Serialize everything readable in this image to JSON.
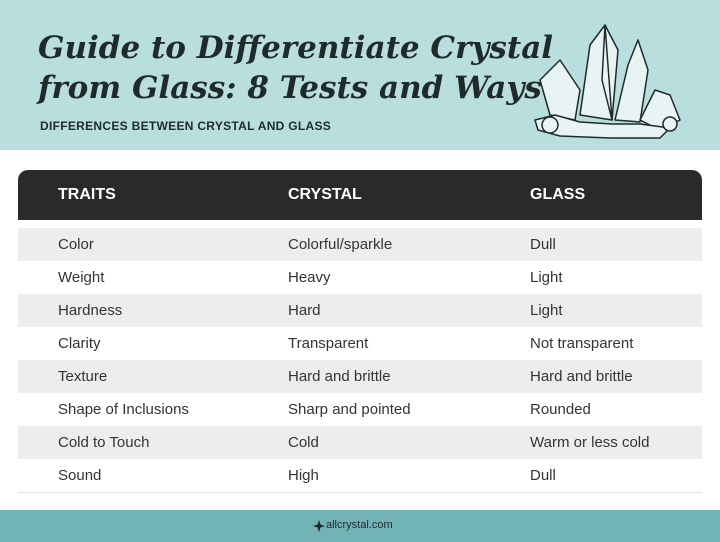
{
  "header": {
    "title_lines": [
      "Guide to Differentiate Crystal",
      "from Glass: 8 Tests and Ways"
    ],
    "subtitle": "DIFFERENCES BETWEEN CRYSTAL AND GLASS"
  },
  "table": {
    "columns": [
      "TRAITS",
      "CRYSTAL",
      "GLASS"
    ],
    "rows": [
      [
        "Color",
        "Colorful/sparkle",
        "Dull"
      ],
      [
        "Weight",
        "Heavy",
        "Light"
      ],
      [
        "Hardness",
        "Hard",
        "Light"
      ],
      [
        "Clarity",
        "Transparent",
        "Not transparent"
      ],
      [
        "Texture",
        "Hard and brittle",
        "Hard and brittle"
      ],
      [
        "Shape of Inclusions",
        "Sharp and pointed",
        "Rounded"
      ],
      [
        "Cold to Touch",
        "Cold",
        "Warm or less cold"
      ],
      [
        "Sound",
        "High",
        "Dull"
      ]
    ]
  },
  "footer": {
    "site": "allcrystal.com"
  }
}
